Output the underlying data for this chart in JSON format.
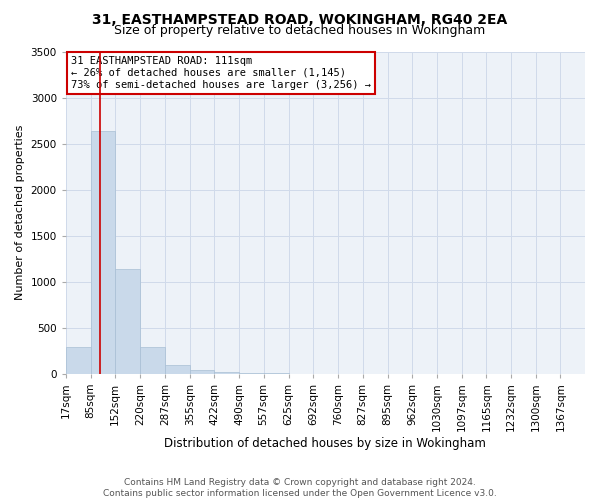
{
  "title": "31, EASTHAMPSTEAD ROAD, WOKINGHAM, RG40 2EA",
  "subtitle": "Size of property relative to detached houses in Wokingham",
  "xlabel": "Distribution of detached houses by size in Wokingham",
  "ylabel": "Number of detached properties",
  "bar_edges": [
    17,
    85,
    152,
    220,
    287,
    355,
    422,
    490,
    557,
    625,
    692,
    760,
    827,
    895,
    962,
    1030,
    1097,
    1165,
    1232,
    1300,
    1367
  ],
  "bar_heights": [
    290,
    2640,
    1140,
    290,
    90,
    40,
    15,
    5,
    2,
    1,
    0,
    0,
    0,
    0,
    0,
    0,
    0,
    0,
    0,
    0
  ],
  "bar_color": "#c9d9ea",
  "bar_edgecolor": "#a8bfd4",
  "bar_linewidth": 0.5,
  "vline_x": 111,
  "vline_color": "#cc0000",
  "vline_linewidth": 1.2,
  "annotation_box_text": "31 EASTHAMPSTEAD ROAD: 111sqm\n← 26% of detached houses are smaller (1,145)\n73% of semi-detached houses are larger (3,256) →",
  "annotation_fontsize": 7.5,
  "annotation_box_color": "#cc0000",
  "ylim": [
    0,
    3500
  ],
  "yticks": [
    0,
    500,
    1000,
    1500,
    2000,
    2500,
    3000,
    3500
  ],
  "grid_color": "#d0daea",
  "bg_color": "#edf2f8",
  "footer_text": "Contains HM Land Registry data © Crown copyright and database right 2024.\nContains public sector information licensed under the Open Government Licence v3.0.",
  "title_fontsize": 10,
  "subtitle_fontsize": 9,
  "xlabel_fontsize": 8.5,
  "ylabel_fontsize": 8,
  "tick_fontsize": 7.5,
  "footer_fontsize": 6.5
}
